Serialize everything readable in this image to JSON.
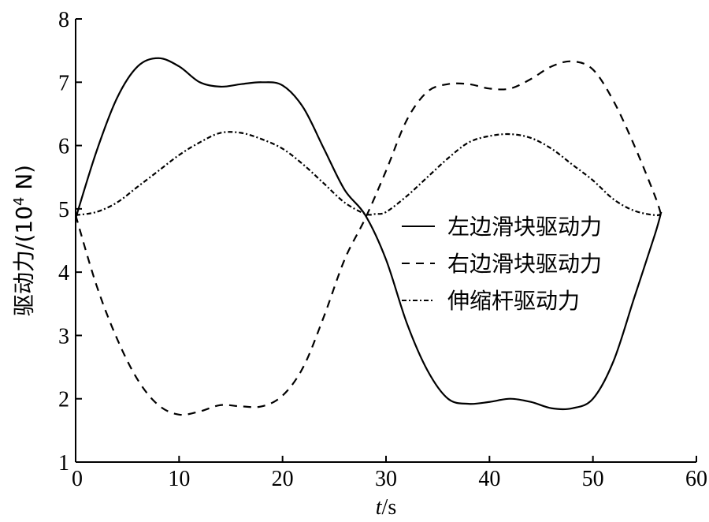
{
  "chart_data": {
    "type": "line",
    "xlabel_var": "t",
    "xlabel_unit": "/s",
    "ylabel_main": "驱动力/(10",
    "ylabel_sup": "4",
    "ylabel_tail": " N)",
    "xlim": [
      0,
      60
    ],
    "ylim": [
      1,
      8
    ],
    "xticks": [
      0,
      10,
      20,
      30,
      40,
      50,
      60
    ],
    "yticks": [
      1,
      2,
      3,
      4,
      5,
      6,
      7,
      8
    ],
    "grid": false,
    "legend_position": "center-right",
    "series": [
      {
        "name": "左边滑块驱动力",
        "dash": "solid",
        "color": "#000000",
        "x": [
          0,
          2,
          4,
          6,
          8,
          10,
          12,
          14,
          16,
          18,
          20,
          22,
          24,
          26,
          28,
          30,
          32,
          34,
          36,
          38,
          40,
          42,
          44,
          46,
          48,
          50,
          52,
          54,
          56,
          56.6
        ],
        "y": [
          4.85,
          5.9,
          6.75,
          7.25,
          7.38,
          7.25,
          7.0,
          6.93,
          6.97,
          7.0,
          6.95,
          6.6,
          5.95,
          5.3,
          4.9,
          4.2,
          3.2,
          2.45,
          2.0,
          1.92,
          1.95,
          2.0,
          1.95,
          1.85,
          1.85,
          2.0,
          2.6,
          3.6,
          4.6,
          4.95
        ]
      },
      {
        "name": "右边滑块驱动力",
        "dash": "dashed",
        "color": "#000000",
        "x": [
          0,
          2,
          4,
          6,
          8,
          10,
          12,
          14,
          16,
          18,
          20,
          22,
          24,
          26,
          28,
          30,
          32,
          34,
          36,
          38,
          40,
          42,
          44,
          46,
          48,
          50,
          52,
          54,
          56,
          56.6
        ],
        "y": [
          4.9,
          3.8,
          2.95,
          2.3,
          1.9,
          1.75,
          1.8,
          1.9,
          1.88,
          1.88,
          2.05,
          2.5,
          3.3,
          4.2,
          4.85,
          5.6,
          6.4,
          6.85,
          6.97,
          6.97,
          6.9,
          6.9,
          7.05,
          7.25,
          7.33,
          7.2,
          6.7,
          6.0,
          5.2,
          4.9
        ]
      },
      {
        "name": "伸缩杆驱动力",
        "dash": "dashdot",
        "color": "#000000",
        "x": [
          0,
          2,
          4,
          6,
          8,
          10,
          12,
          14,
          16,
          18,
          20,
          22,
          24,
          26,
          28,
          29,
          30,
          32,
          34,
          36,
          38,
          40,
          42,
          44,
          46,
          48,
          50,
          52,
          54,
          56,
          56.6
        ],
        "y": [
          4.9,
          4.95,
          5.1,
          5.35,
          5.6,
          5.85,
          6.05,
          6.2,
          6.2,
          6.1,
          5.95,
          5.7,
          5.4,
          5.1,
          4.92,
          4.92,
          4.95,
          5.2,
          5.5,
          5.8,
          6.05,
          6.15,
          6.18,
          6.12,
          5.95,
          5.7,
          5.45,
          5.15,
          4.97,
          4.9,
          4.92
        ]
      }
    ]
  }
}
